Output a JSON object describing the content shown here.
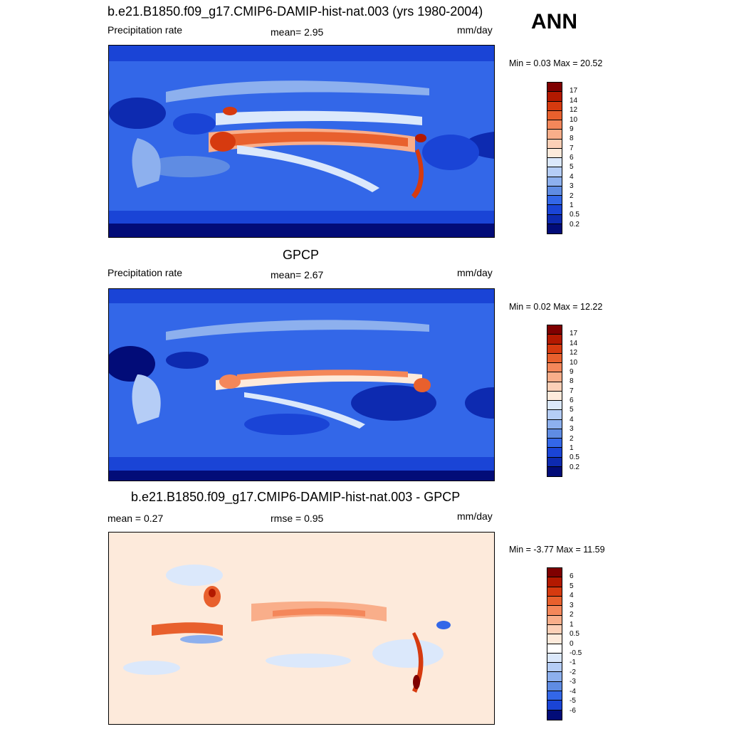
{
  "season": "ANN",
  "panels": [
    {
      "id": "model",
      "title": "b.e21.B1850.f09_g17.CMIP6-DAMIP-hist-nat.003 (yrs 1980-2004)",
      "left_label": "Precipitation rate",
      "center_label": "mean=   2.95",
      "units": "mm/day",
      "minmax": "Min =   0.03 Max =  20.52",
      "palette": "precip"
    },
    {
      "id": "obs",
      "title": "GPCP",
      "left_label": "Precipitation rate",
      "center_label": "mean=   2.67",
      "units": "mm/day",
      "minmax": "Min =   0.02 Max =  12.22",
      "palette": "precip"
    },
    {
      "id": "diff",
      "title": "b.e21.B1850.f09_g17.CMIP6-DAMIP-hist-nat.003 - GPCP",
      "left_label": "mean =   0.27",
      "center_label": "rmse =   0.95",
      "units": "mm/day",
      "minmax": "Min =  -3.77 Max =  11.59",
      "palette": "diff"
    }
  ],
  "colorbars": {
    "precip": {
      "labels": [
        "17",
        "14",
        "12",
        "10",
        "9",
        "8",
        "7",
        "6",
        "5",
        "4",
        "3",
        "2",
        "1",
        "0.5",
        "0.2"
      ],
      "colors": [
        "#7f0000",
        "#b31900",
        "#d63a0f",
        "#e8602d",
        "#f4875a",
        "#f9ae8a",
        "#fcd0b7",
        "#fdeadb",
        "#dbe8fb",
        "#b5cdf6",
        "#8db0ee",
        "#5f8ce3",
        "#3367e8",
        "#1a44d6",
        "#0d2ab0",
        "#020c78"
      ]
    },
    "diff": {
      "labels": [
        "6",
        "5",
        "4",
        "3",
        "2",
        "1",
        "0.5",
        "0",
        "-0.5",
        "-1",
        "-2",
        "-3",
        "-4",
        "-5",
        "-6"
      ],
      "colors": [
        "#7f0000",
        "#b31900",
        "#d63a0f",
        "#e8602d",
        "#f4875a",
        "#f9ae8a",
        "#fcd0b7",
        "#fdeadb",
        "#ffffff",
        "#dbe8fb",
        "#b5cdf6",
        "#8db0ee",
        "#5f8ce3",
        "#3367e8",
        "#1a44d6",
        "#020c78"
      ]
    }
  }
}
